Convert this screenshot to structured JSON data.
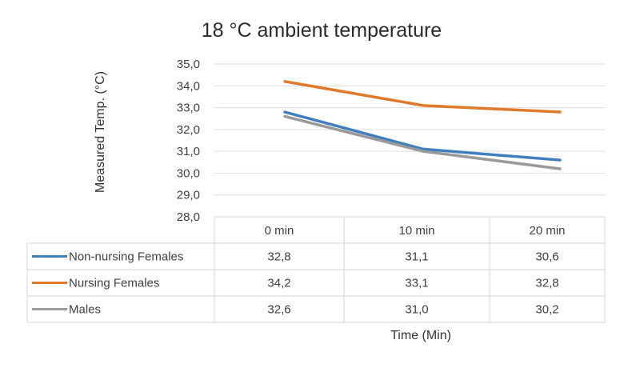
{
  "chart_data": {
    "type": "line",
    "title": "18 °C ambient temperature",
    "xlabel": "Time (Min)",
    "ylabel": "Measured Temp. (°C)",
    "categories": [
      "0 min",
      "10 min",
      "20 min"
    ],
    "ylim": [
      28.0,
      35.0
    ],
    "yticks": [
      "28,0",
      "29,0",
      "30,0",
      "31,0",
      "32,0",
      "33,0",
      "34,0",
      "35,0"
    ],
    "grid": true,
    "legend_placement": "data-table-left",
    "series": [
      {
        "name": "Non-nursing Females",
        "color": "#3f7fbf",
        "values": [
          32.8,
          31.1,
          30.6
        ],
        "labels": [
          "32,8",
          "31,1",
          "30,6"
        ]
      },
      {
        "name": "Nursing Females",
        "color": "#e07a2a",
        "values": [
          34.2,
          33.1,
          32.8
        ],
        "labels": [
          "34,2",
          "33,1",
          "32,8"
        ]
      },
      {
        "name": "Males",
        "color": "#9a9a9a",
        "values": [
          32.6,
          31.0,
          30.2
        ],
        "labels": [
          "32,6",
          "31,0",
          "30,2"
        ]
      }
    ]
  }
}
